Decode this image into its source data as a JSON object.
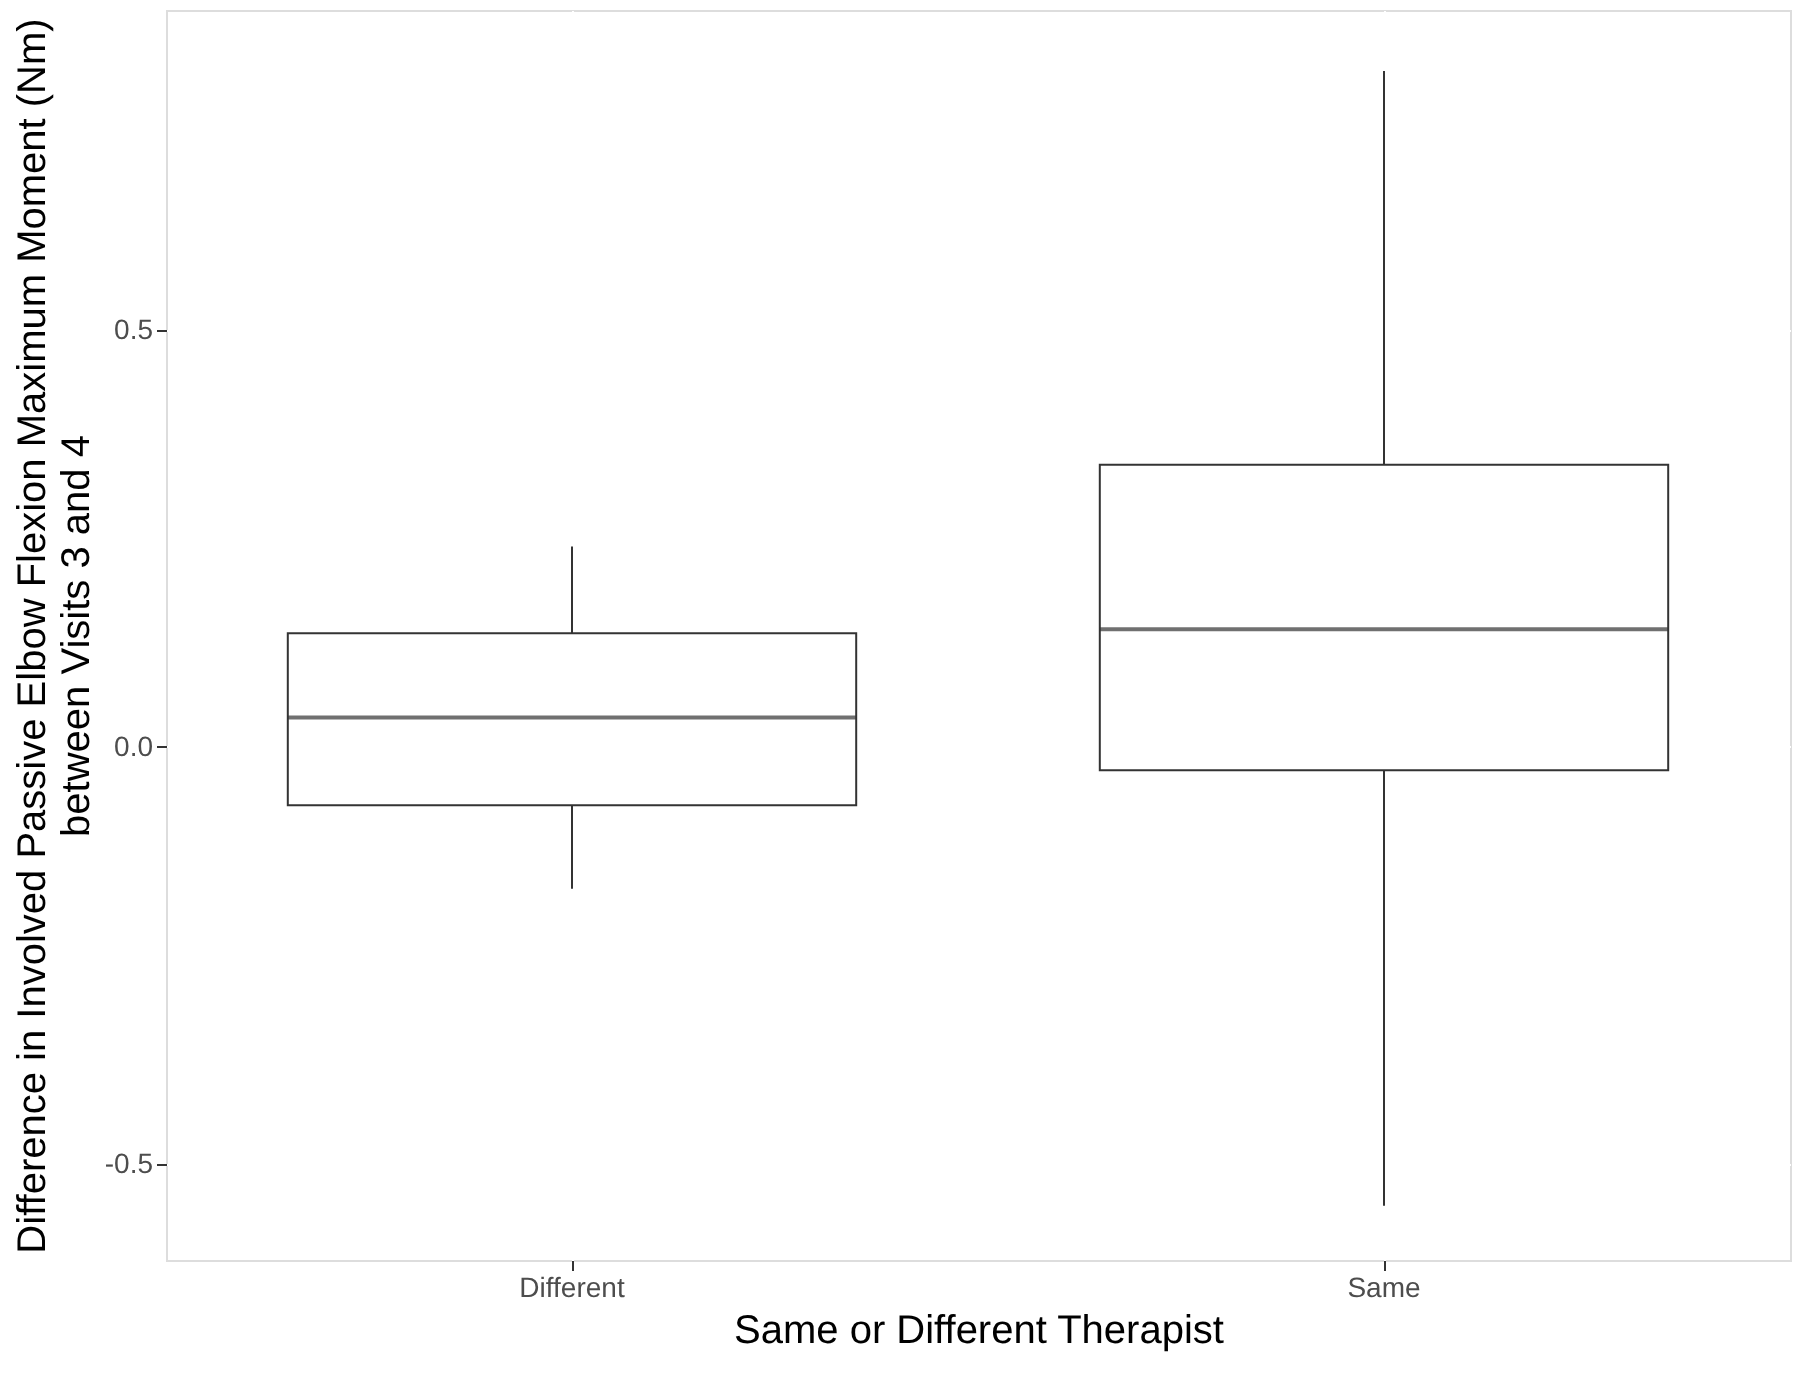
{
  "chart_data": {
    "type": "box",
    "xlabel": "Same or Different Therapist",
    "ylabel": "Difference in Involved Passive Elbow Flexion Maximum Moment (Nm)\nbetween Visits 3 and 4",
    "categories": [
      "Different",
      "Same"
    ],
    "boxes": [
      {
        "low": -0.17,
        "q1": -0.07,
        "median": 0.035,
        "q3": 0.136,
        "high": 0.24
      },
      {
        "low": -0.55,
        "q1": -0.028,
        "median": 0.141,
        "q3": 0.338,
        "high": 0.81
      }
    ],
    "ylim": [
      -0.615,
      0.883
    ],
    "yticks": [
      {
        "value": -0.5,
        "label": "-0.5"
      },
      {
        "value": 0,
        "label": "0.0"
      },
      {
        "value": 0.5,
        "label": "0.5"
      }
    ],
    "grid": true
  }
}
